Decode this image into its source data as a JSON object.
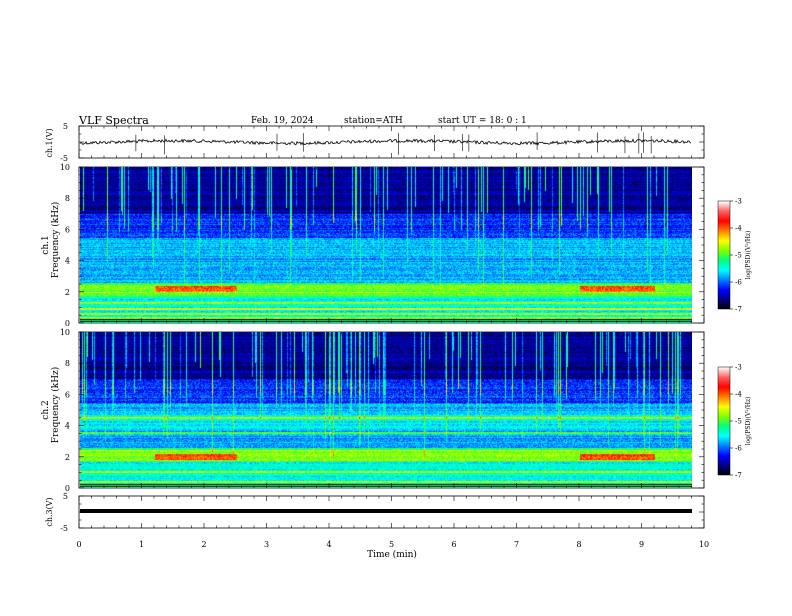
{
  "header": {
    "title": "VLF  Spectra",
    "date": "Feb. 19, 2024",
    "station": "station=ATH",
    "start_ut": "start  UT  =    18: 0   : 1"
  },
  "chart_data": [
    {
      "type": "line",
      "name": "ch1-waveform",
      "ylabel": "ch.1(V)",
      "ylim": [
        -5,
        5
      ],
      "yticks": [
        "5",
        "-5"
      ],
      "xlim": [
        0,
        9.8
      ]
    },
    {
      "type": "heatmap",
      "name": "ch1-spectrogram",
      "ylabel_line1": "ch.1",
      "ylabel_line2": "Frequency  (kHz)",
      "ylim": [
        0,
        10
      ],
      "yticks": [
        "0",
        "2",
        "4",
        "6",
        "8",
        "10"
      ],
      "xlim": [
        0,
        9.8
      ],
      "colorbar": {
        "label": "log(PSD)(V²/Hz)",
        "ticks": [
          "-3",
          "-4",
          "-5",
          "-6",
          "-7"
        ],
        "range": [
          -7,
          -3
        ]
      },
      "features": [
        {
          "kind": "strong-band",
          "freq_khz": 2.2,
          "time_min": [
            1.2,
            2.5
          ]
        },
        {
          "kind": "strong-band",
          "freq_khz": 2.2,
          "time_min": [
            8.0,
            9.2
          ]
        },
        {
          "kind": "persistent-lines",
          "freq_khz": [
            0.3,
            0.6,
            0.9,
            1.3
          ]
        }
      ]
    },
    {
      "type": "heatmap",
      "name": "ch2-spectrogram",
      "ylabel_line1": "ch.2",
      "ylabel_line2": "Frequency  (kHz)",
      "ylim": [
        0,
        10
      ],
      "yticks": [
        "0",
        "2",
        "4",
        "6",
        "8",
        "10"
      ],
      "xlim": [
        0,
        9.8
      ],
      "colorbar": {
        "label": "log(PSD)(V²/Hz)",
        "ticks": [
          "-3",
          "-4",
          "-5",
          "-6",
          "-7"
        ],
        "range": [
          -7,
          -3
        ]
      },
      "features": [
        {
          "kind": "strong-band",
          "freq_khz": 2.0,
          "time_min": [
            1.2,
            2.5
          ]
        },
        {
          "kind": "strong-band",
          "freq_khz": 2.0,
          "time_min": [
            8.0,
            9.2
          ]
        },
        {
          "kind": "persistent-lines",
          "freq_khz": [
            0.4,
            1.0,
            3.5,
            4.5
          ]
        }
      ]
    },
    {
      "type": "line",
      "name": "ch3-waveform",
      "ylabel": "ch.3(V)",
      "ylim": [
        -5,
        5
      ],
      "yticks": [
        "5",
        "-5"
      ],
      "xlim": [
        0,
        9.8
      ]
    }
  ],
  "x_axis": {
    "label": "Time  (min)",
    "ticks": [
      "0",
      "1",
      "2",
      "3",
      "4",
      "5",
      "6",
      "7",
      "8",
      "9",
      "10"
    ],
    "range": [
      0,
      10
    ]
  },
  "colors": {
    "colormap": [
      "#000000",
      "#00007f",
      "#0000ff",
      "#0080ff",
      "#00ffff",
      "#00ff80",
      "#80ff00",
      "#ffff00",
      "#ff8000",
      "#ff0000",
      "#ff6060",
      "#ffffff"
    ]
  }
}
